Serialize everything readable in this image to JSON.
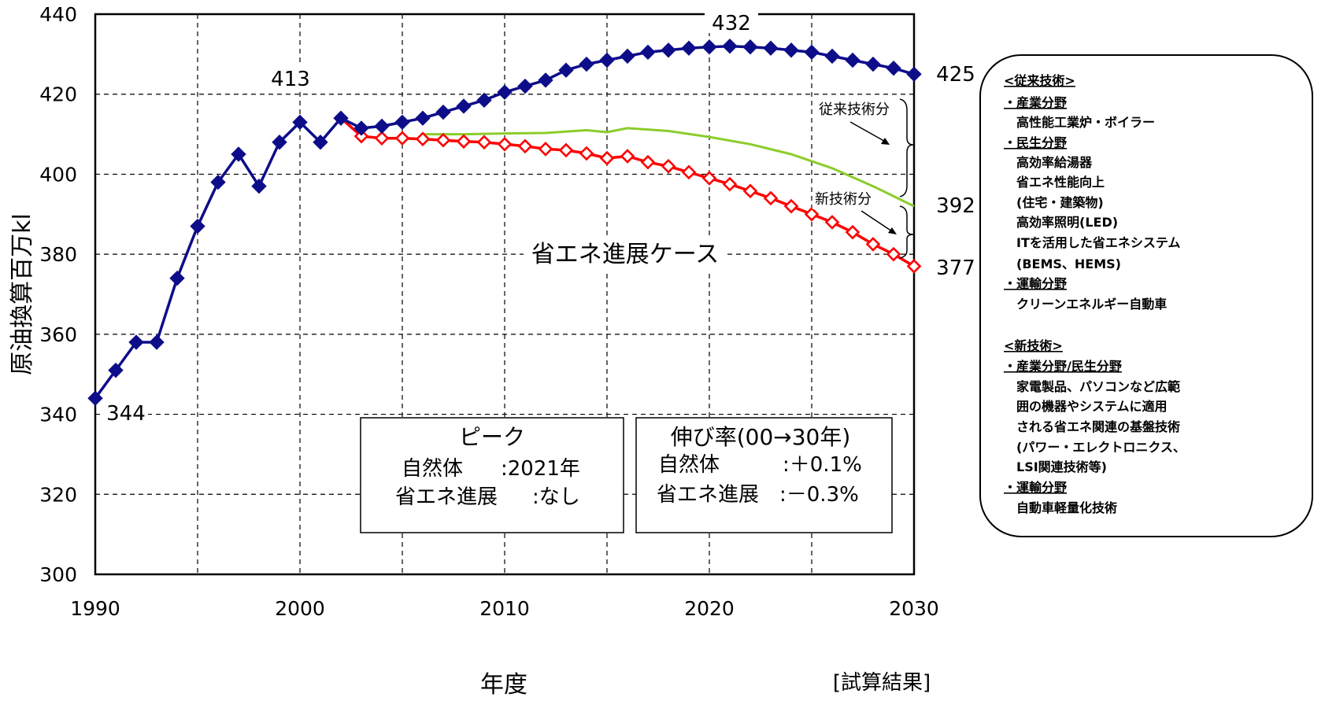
{
  "chart_data": {
    "type": "line",
    "xlabel": "年度",
    "ylabel": "原油換算百万kl",
    "xlim": [
      1990,
      2030
    ],
    "ylim": [
      300,
      440
    ],
    "xticks": [
      1990,
      2000,
      2010,
      2020,
      2030
    ],
    "yticks": [
      300,
      320,
      340,
      360,
      380,
      400,
      420,
      440
    ],
    "grid": true,
    "series": [
      {
        "key": "natural",
        "color": "#0d0d8a",
        "marker": "filled-diamond",
        "x": [
          1990,
          1991,
          1992,
          1993,
          1994,
          1995,
          1996,
          1997,
          1998,
          1999,
          2000,
          2001,
          2002,
          2003,
          2004,
          2005,
          2006,
          2007,
          2008,
          2009,
          2010,
          2011,
          2012,
          2013,
          2014,
          2015,
          2016,
          2017,
          2018,
          2019,
          2020,
          2021,
          2022,
          2023,
          2024,
          2025,
          2026,
          2027,
          2028,
          2029,
          2030
        ],
        "values": [
          344,
          351,
          358,
          358,
          374,
          387,
          398,
          405,
          397,
          408,
          413,
          408,
          414,
          411.5,
          412,
          413,
          414,
          415.5,
          417,
          418.5,
          420.5,
          422,
          423.5,
          426,
          427.5,
          428.5,
          429.5,
          430.5,
          431,
          431.5,
          431.8,
          432,
          431.8,
          431.5,
          431,
          430.5,
          429.5,
          428.5,
          427.5,
          426.5,
          425
        ]
      },
      {
        "key": "conservation",
        "color": "#ff0000",
        "marker": "open-diamond",
        "x": [
          2002,
          2003,
          2004,
          2005,
          2006,
          2007,
          2008,
          2009,
          2010,
          2011,
          2012,
          2013,
          2014,
          2015,
          2016,
          2017,
          2018,
          2019,
          2020,
          2021,
          2022,
          2023,
          2024,
          2025,
          2026,
          2027,
          2028,
          2029,
          2030
        ],
        "values": [
          414,
          409.5,
          409,
          409,
          408.8,
          408.5,
          408.2,
          408,
          407.5,
          407,
          406.3,
          406,
          405.2,
          404,
          404.5,
          403,
          402,
          400.5,
          399,
          397.5,
          395.8,
          394,
          392,
          390,
          388,
          385.5,
          382.5,
          380,
          377
        ]
      },
      {
        "key": "conventional_tech_only",
        "color": "#8ccc2c",
        "marker": "none",
        "x": [
          2006,
          2008,
          2010,
          2012,
          2014,
          2015,
          2016,
          2018,
          2020,
          2022,
          2024,
          2026,
          2028,
          2030
        ],
        "values": [
          410,
          410,
          410.2,
          410.3,
          411,
          410.5,
          411.5,
          410.8,
          409.3,
          407.5,
          405,
          401.5,
          397,
          392
        ]
      }
    ],
    "annotations": {
      "v344": "344",
      "v413": "413",
      "v432": "432",
      "v425": "425",
      "v392": "392",
      "v377": "377",
      "case_label": "省エネ進展ケース",
      "conventional_share": "従来技術分",
      "new_share": "新技術分",
      "note": "[試算結果]"
    }
  },
  "peak_box": {
    "title": "ピーク",
    "row1_label": "自然体",
    "row1_value": ":2021年",
    "row2_label": "省エネ進展",
    "row2_value": ":なし"
  },
  "growth_box": {
    "title": "伸び率(00→30年)",
    "row1_label": "自然体",
    "row1_value": ":＋0.1%",
    "row2_label": "省エネ進展",
    "row2_value": ":－0.3%"
  },
  "sidebar": {
    "conventional_heading": "<従来技術>",
    "industry_heading": "・産業分野",
    "industry_1": "高性能工業炉・ボイラー",
    "residential_heading": "・民生分野",
    "residential_1": "高効率給湯器",
    "residential_2": "省エネ性能向上",
    "residential_3": "(住宅・建築物)",
    "residential_4": "高効率照明(LED)",
    "residential_5": "ITを活用した省エネシステム",
    "residential_6": "(BEMS、HEMS)",
    "transport_heading": "・運輸分野",
    "transport_1": "クリーンエネルギー自動車",
    "new_heading": "<新技術>",
    "ind_res_heading": "・産業分野/民生分野",
    "ind_res_1": "家電製品、パソコンなど広範",
    "ind_res_2": "囲の機器やシステムに適用",
    "ind_res_3": "される省エネ関連の基盤技術",
    "ind_res_4": "(パワー・エレクトロニクス、",
    "ind_res_5": "LSI関連技術等)",
    "transport2_heading": "・運輸分野",
    "transport2_1": "自動車軽量化技術"
  }
}
